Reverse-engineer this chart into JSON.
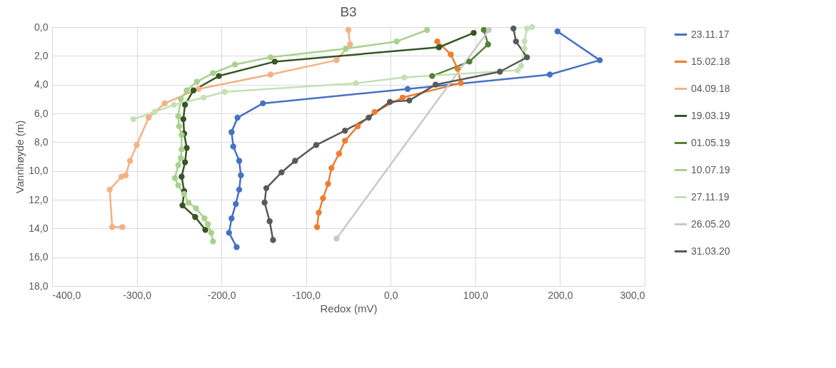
{
  "chart_data": {
    "type": "line",
    "title": "B3",
    "xlabel": "Redox (mV)",
    "ylabel": "Vannhøyde (m)",
    "xlim": [
      -400,
      300
    ],
    "xticks": [
      {
        "value": -400,
        "label": "-400,0"
      },
      {
        "value": -300,
        "label": "-300,0"
      },
      {
        "value": -200,
        "label": "-200,0"
      },
      {
        "value": -100,
        "label": "-100,0"
      },
      {
        "value": 0,
        "label": "0,0"
      },
      {
        "value": 100,
        "label": "100,0"
      },
      {
        "value": 200,
        "label": "200,0"
      },
      {
        "value": 300,
        "label": "300,0"
      }
    ],
    "ylim": [
      18,
      0
    ],
    "yticks": [
      {
        "value": 0,
        "label": "0,0"
      },
      {
        "value": 2,
        "label": "2,0"
      },
      {
        "value": 4,
        "label": "4,0"
      },
      {
        "value": 6,
        "label": "6,0"
      },
      {
        "value": 8,
        "label": "8,0"
      },
      {
        "value": 10,
        "label": "10,0"
      },
      {
        "value": 12,
        "label": "12,0"
      },
      {
        "value": 14,
        "label": "14,0"
      },
      {
        "value": 16,
        "label": "16,0"
      },
      {
        "value": 18,
        "label": "18,0"
      }
    ],
    "grid": true,
    "legend": "right",
    "marker": "circle",
    "line_style": "solid",
    "series": [
      {
        "name": "23.11.17",
        "color": "#4472c4",
        "x": [
          197,
          247,
          188,
          20,
          -151,
          -181,
          -188,
          -186,
          -179,
          -177,
          -179,
          -183,
          -188,
          -191,
          -182
        ],
        "values": [
          0.3,
          2.3,
          3.3,
          4.3,
          5.3,
          6.3,
          7.3,
          8.3,
          9.3,
          10.3,
          11.3,
          12.3,
          13.3,
          14.3,
          15.3
        ]
      },
      {
        "name": "15.02.18",
        "color": "#ed7d31",
        "x": [
          55,
          71,
          79,
          83,
          14,
          -19,
          -39,
          -54,
          -61,
          -70,
          -74,
          -80,
          -85,
          -87
        ],
        "values": [
          1,
          1.9,
          2.9,
          3.9,
          4.9,
          5.9,
          6.9,
          7.9,
          8.8,
          9.8,
          10.9,
          11.9,
          12.9,
          13.9
        ]
      },
      {
        "name": "04.09.18",
        "color": "#f4b183",
        "x": [
          -50,
          -48,
          -64,
          -142,
          -227,
          -267,
          -286,
          -300,
          -308,
          -313,
          -318,
          -332,
          -329,
          -317
        ],
        "values": [
          0.2,
          1.2,
          2.3,
          3.3,
          4.3,
          5.3,
          6.3,
          8.2,
          9.3,
          10.3,
          10.4,
          11.3,
          13.9,
          13.9
        ]
      },
      {
        "name": "19.03.19",
        "color": "#375623",
        "x": [
          98,
          57,
          -137,
          -203,
          -233,
          -243,
          -245,
          -244,
          -241,
          -243,
          -247,
          -244,
          -246,
          -231,
          -219
        ],
        "values": [
          0.4,
          1.4,
          2.4,
          3.4,
          4.4,
          5.4,
          6.4,
          7.4,
          8.4,
          9.4,
          10.4,
          11.4,
          12.4,
          13.2,
          14.1
        ]
      },
      {
        "name": "01.05.19",
        "color": "#548235",
        "x": [
          110,
          115,
          93,
          49
        ],
        "values": [
          0.2,
          1.2,
          2.4,
          3.4
        ]
      },
      {
        "name": "10.07.19",
        "color": "#a9d18e",
        "x": [
          43,
          7,
          -53,
          -142,
          -184,
          -210,
          -229,
          -241,
          -248,
          -251,
          -250,
          -247,
          -247,
          -248,
          -251,
          -255,
          -251,
          -244,
          -239,
          -230,
          -220,
          -216,
          -212,
          -210
        ],
        "values": [
          0.2,
          1,
          1.5,
          2.1,
          2.6,
          3.2,
          3.8,
          4.4,
          5,
          6.2,
          6.9,
          7.5,
          8.5,
          9.1,
          9.6,
          10.5,
          11,
          11.6,
          12.2,
          12.6,
          13.3,
          13.7,
          14.3,
          14.9
        ]
      },
      {
        "name": "27.11.19",
        "color": "#c5e0b4",
        "x": [
          167,
          161,
          158,
          158,
          154,
          150,
          16,
          -41,
          -196,
          -221,
          -256,
          -279,
          -304
        ],
        "values": [
          0,
          0.1,
          1,
          1.5,
          2.7,
          3,
          3.5,
          3.9,
          4.5,
          4.9,
          5.4,
          5.9,
          6.4
        ]
      },
      {
        "name": "26.05.20",
        "color": "#c9c9c9",
        "x": [
          116,
          -64
        ],
        "values": [
          0.2,
          14.7
        ]
      },
      {
        "name": "31.03.20",
        "color": "#595959",
        "x": [
          145,
          148,
          161,
          129,
          53,
          22,
          -1,
          -26,
          -54,
          -88,
          -113,
          -129,
          -147,
          -149,
          -143,
          -139
        ],
        "values": [
          0.1,
          1,
          2.1,
          3.1,
          4,
          5.1,
          5.2,
          6.3,
          7.2,
          8.2,
          9.3,
          10.1,
          11.2,
          12.2,
          13.5,
          14.8
        ]
      }
    ]
  }
}
